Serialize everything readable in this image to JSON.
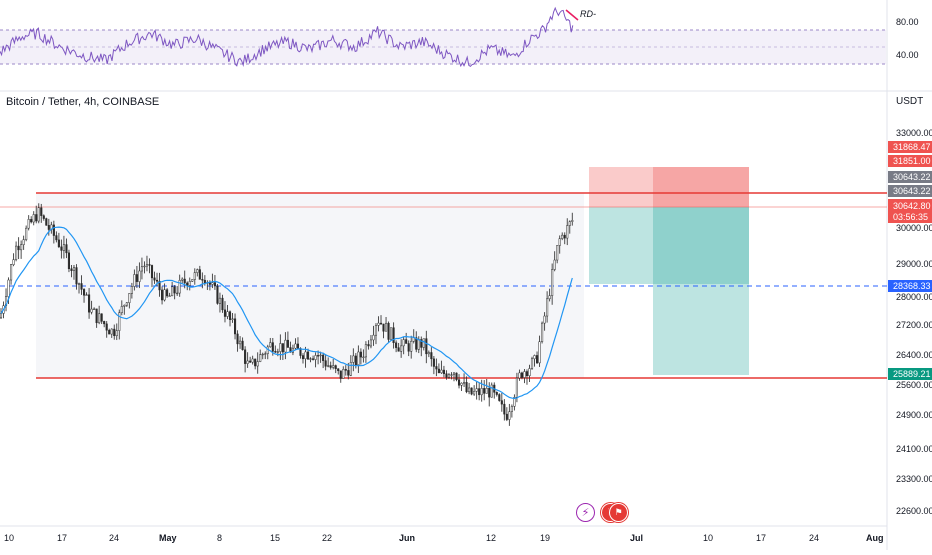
{
  "header": {
    "title": "Bitcoin / Tether, 4h, COINBASE",
    "unit": "USDT"
  },
  "rsi": {
    "ticks": [
      "80.00",
      "40.00"
    ],
    "annotation": "RD-",
    "bands": [
      30,
      70
    ],
    "mid": 50
  },
  "price_axis": {
    "ticks": [
      "33000.00",
      "30000.00",
      "29000.00",
      "28000.00",
      "27200.00",
      "26400.00",
      "25600.00",
      "24900.00",
      "24100.00",
      "23300.00",
      "22600.00"
    ]
  },
  "price_labels": [
    {
      "text": "31868.47",
      "color": "#ef5350"
    },
    {
      "text": "31851.00",
      "color": "#ef5350"
    },
    {
      "text": "30643.22",
      "color": "#787b86"
    },
    {
      "text": "30643.22",
      "color": "#787b86"
    },
    {
      "text": "30642.80",
      "color": "#ef5350"
    },
    {
      "text": "03:56:35",
      "color": "#ef5350"
    },
    {
      "text": "28368.33",
      "color": "#2962ff"
    },
    {
      "text": "25889.21",
      "color": "#089981"
    }
  ],
  "time_axis": {
    "labels": [
      "10",
      "17",
      "24",
      "May",
      "8",
      "15",
      "22",
      "Jun",
      "12",
      "19",
      "Jul",
      "10",
      "17",
      "24",
      "Aug"
    ]
  },
  "chart_data": {
    "type": "candlestick",
    "symbol": "Bitcoin / Tether",
    "timeframe": "4h",
    "exchange": "COINBASE",
    "quote_unit": "USDT",
    "y_range": [
      22300,
      33400
    ],
    "x_range": [
      "2023-04-09",
      "2023-08-01"
    ],
    "horizontal_levels": [
      {
        "price": 31050,
        "color": "#e53935"
      },
      {
        "price": 25700,
        "color": "#e53935"
      },
      {
        "price": 28368.33,
        "color": "#2962ff",
        "style": "dashed"
      }
    ],
    "range_box": {
      "top": 31050,
      "bottom": 25700,
      "from": "2023-04-14",
      "to": "2023-06-26"
    },
    "short_position_1": {
      "entry": 30643.22,
      "stop": 31868.47,
      "target": 28368.33,
      "from": "2023-06-23",
      "to": "2023-07-15"
    },
    "short_position_2": {
      "entry": 30642.8,
      "stop": 31851.0,
      "target": 25889.21,
      "from": "2023-07-03",
      "to": "2023-07-15"
    },
    "moving_average_color": "#2196f3",
    "rsi_color": "#7e57c2",
    "price_path": [
      {
        "date": "2023-04-09",
        "price": 27900
      },
      {
        "date": "2023-04-11",
        "price": 29800
      },
      {
        "date": "2023-04-14",
        "price": 30800
      },
      {
        "date": "2023-04-17",
        "price": 29900
      },
      {
        "date": "2023-04-19",
        "price": 29100
      },
      {
        "date": "2023-04-21",
        "price": 28100
      },
      {
        "date": "2023-04-24",
        "price": 27500
      },
      {
        "date": "2023-04-26",
        "price": 28600
      },
      {
        "date": "2023-04-28",
        "price": 29400
      },
      {
        "date": "2023-05-01",
        "price": 28400
      },
      {
        "date": "2023-05-04",
        "price": 29000
      },
      {
        "date": "2023-05-06",
        "price": 29100
      },
      {
        "date": "2023-05-08",
        "price": 28400
      },
      {
        "date": "2023-05-10",
        "price": 27600
      },
      {
        "date": "2023-05-12",
        "price": 26500
      },
      {
        "date": "2023-05-15",
        "price": 27200
      },
      {
        "date": "2023-05-18",
        "price": 27000
      },
      {
        "date": "2023-05-21",
        "price": 26900
      },
      {
        "date": "2023-05-24",
        "price": 26300
      },
      {
        "date": "2023-05-27",
        "price": 26900
      },
      {
        "date": "2023-05-29",
        "price": 27900
      },
      {
        "date": "2023-06-01",
        "price": 27100
      },
      {
        "date": "2023-06-04",
        "price": 27200
      },
      {
        "date": "2023-06-06",
        "price": 26300
      },
      {
        "date": "2023-06-08",
        "price": 26500
      },
      {
        "date": "2023-06-10",
        "price": 25800
      },
      {
        "date": "2023-06-13",
        "price": 25900
      },
      {
        "date": "2023-06-15",
        "price": 25200
      },
      {
        "date": "2023-06-17",
        "price": 26400
      },
      {
        "date": "2023-06-19",
        "price": 26700
      },
      {
        "date": "2023-06-21",
        "price": 28900
      },
      {
        "date": "2023-06-22",
        "price": 30000
      },
      {
        "date": "2023-06-23",
        "price": 30300
      },
      {
        "date": "2023-06-24",
        "price": 30642.8
      }
    ],
    "rsi_path": [
      {
        "date": "2023-04-09",
        "value": 44
      },
      {
        "date": "2023-04-12",
        "value": 63
      },
      {
        "date": "2023-04-14",
        "value": 66
      },
      {
        "date": "2023-04-17",
        "value": 50
      },
      {
        "date": "2023-04-20",
        "value": 40
      },
      {
        "date": "2023-04-23",
        "value": 34
      },
      {
        "date": "2023-04-26",
        "value": 55
      },
      {
        "date": "2023-04-29",
        "value": 66
      },
      {
        "date": "2023-05-02",
        "value": 52
      },
      {
        "date": "2023-05-05",
        "value": 60
      },
      {
        "date": "2023-05-08",
        "value": 45
      },
      {
        "date": "2023-05-11",
        "value": 32
      },
      {
        "date": "2023-05-14",
        "value": 48
      },
      {
        "date": "2023-05-17",
        "value": 56
      },
      {
        "date": "2023-05-20",
        "value": 47
      },
      {
        "date": "2023-05-23",
        "value": 58
      },
      {
        "date": "2023-05-26",
        "value": 50
      },
      {
        "date": "2023-05-29",
        "value": 68
      },
      {
        "date": "2023-06-01",
        "value": 50
      },
      {
        "date": "2023-06-04",
        "value": 56
      },
      {
        "date": "2023-06-07",
        "value": 42
      },
      {
        "date": "2023-06-10",
        "value": 31
      },
      {
        "date": "2023-06-13",
        "value": 48
      },
      {
        "date": "2023-06-16",
        "value": 38
      },
      {
        "date": "2023-06-18",
        "value": 58
      },
      {
        "date": "2023-06-20",
        "value": 70
      },
      {
        "date": "2023-06-21",
        "value": 86
      },
      {
        "date": "2023-06-22",
        "value": 93
      },
      {
        "date": "2023-06-23",
        "value": 82
      },
      {
        "date": "2023-06-24",
        "value": 70
      }
    ]
  },
  "icons": [
    "bolt-icon",
    "us-flag-icon",
    "us-flag-icon"
  ]
}
